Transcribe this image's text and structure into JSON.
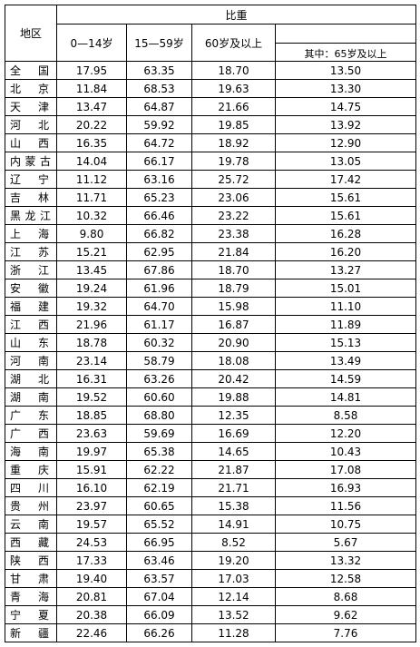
{
  "header": {
    "region_label": "地区",
    "ratio_label": "比重",
    "col_0_14": "0—14岁",
    "col_15_59": "15—59岁",
    "col_60_plus": "60岁及以上",
    "col_65_plus": "其中：65岁及以上"
  },
  "rows": [
    {
      "region": "全国",
      "a": "17.95",
      "b": "63.35",
      "c": "18.70",
      "d": "13.50"
    },
    {
      "region": "北京",
      "a": "11.84",
      "b": "68.53",
      "c": "19.63",
      "d": "13.30"
    },
    {
      "region": "天津",
      "a": "13.47",
      "b": "64.87",
      "c": "21.66",
      "d": "14.75"
    },
    {
      "region": "河北",
      "a": "20.22",
      "b": "59.92",
      "c": "19.85",
      "d": "13.92"
    },
    {
      "region": "山西",
      "a": "16.35",
      "b": "64.72",
      "c": "18.92",
      "d": "12.90"
    },
    {
      "region": "内蒙古",
      "a": "14.04",
      "b": "66.17",
      "c": "19.78",
      "d": "13.05"
    },
    {
      "region": "辽宁",
      "a": "11.12",
      "b": "63.16",
      "c": "25.72",
      "d": "17.42"
    },
    {
      "region": "吉林",
      "a": "11.71",
      "b": "65.23",
      "c": "23.06",
      "d": "15.61"
    },
    {
      "region": "黑龙江",
      "a": "10.32",
      "b": "66.46",
      "c": "23.22",
      "d": "15.61"
    },
    {
      "region": "上海",
      "a": "9.80",
      "b": "66.82",
      "c": "23.38",
      "d": "16.28"
    },
    {
      "region": "江苏",
      "a": "15.21",
      "b": "62.95",
      "c": "21.84",
      "d": "16.20"
    },
    {
      "region": "浙江",
      "a": "13.45",
      "b": "67.86",
      "c": "18.70",
      "d": "13.27"
    },
    {
      "region": "安徽",
      "a": "19.24",
      "b": "61.96",
      "c": "18.79",
      "d": "15.01"
    },
    {
      "region": "福建",
      "a": "19.32",
      "b": "64.70",
      "c": "15.98",
      "d": "11.10"
    },
    {
      "region": "江西",
      "a": "21.96",
      "b": "61.17",
      "c": "16.87",
      "d": "11.89"
    },
    {
      "region": "山东",
      "a": "18.78",
      "b": "60.32",
      "c": "20.90",
      "d": "15.13"
    },
    {
      "region": "河南",
      "a": "23.14",
      "b": "58.79",
      "c": "18.08",
      "d": "13.49"
    },
    {
      "region": "湖北",
      "a": "16.31",
      "b": "63.26",
      "c": "20.42",
      "d": "14.59"
    },
    {
      "region": "湖南",
      "a": "19.52",
      "b": "60.60",
      "c": "19.88",
      "d": "14.81"
    },
    {
      "region": "广东",
      "a": "18.85",
      "b": "68.80",
      "c": "12.35",
      "d": "8.58"
    },
    {
      "region": "广西",
      "a": "23.63",
      "b": "59.69",
      "c": "16.69",
      "d": "12.20"
    },
    {
      "region": "海南",
      "a": "19.97",
      "b": "65.38",
      "c": "14.65",
      "d": "10.43"
    },
    {
      "region": "重庆",
      "a": "15.91",
      "b": "62.22",
      "c": "21.87",
      "d": "17.08"
    },
    {
      "region": "四川",
      "a": "16.10",
      "b": "62.19",
      "c": "21.71",
      "d": "16.93"
    },
    {
      "region": "贵州",
      "a": "23.97",
      "b": "60.65",
      "c": "15.38",
      "d": "11.56"
    },
    {
      "region": "云南",
      "a": "19.57",
      "b": "65.52",
      "c": "14.91",
      "d": "10.75"
    },
    {
      "region": "西藏",
      "a": "24.53",
      "b": "66.95",
      "c": "8.52",
      "d": "5.67"
    },
    {
      "region": "陕西",
      "a": "17.33",
      "b": "63.46",
      "c": "19.20",
      "d": "13.32"
    },
    {
      "region": "甘肃",
      "a": "19.40",
      "b": "63.57",
      "c": "17.03",
      "d": "12.58"
    },
    {
      "region": "青海",
      "a": "20.81",
      "b": "67.04",
      "c": "12.14",
      "d": "8.68"
    },
    {
      "region": "宁夏",
      "a": "20.38",
      "b": "66.09",
      "c": "13.52",
      "d": "9.62"
    },
    {
      "region": "新疆",
      "a": "22.46",
      "b": "66.26",
      "c": "11.28",
      "d": "7.76"
    }
  ]
}
